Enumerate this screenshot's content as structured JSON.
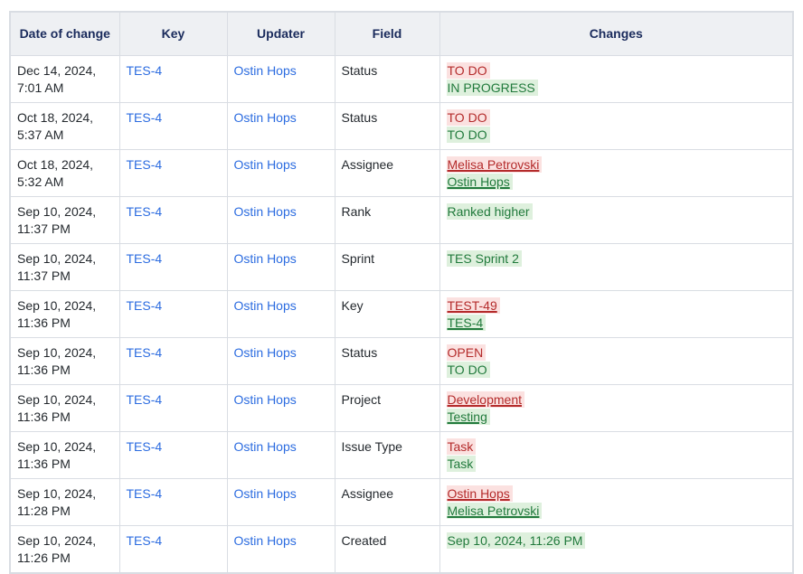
{
  "table": {
    "headers": {
      "date": "Date of change",
      "key": "Key",
      "updater": "Updater",
      "field": "Field",
      "changes": "Changes"
    },
    "colors": {
      "header_text": "#1a2b5c",
      "header_bg": "#eef0f3",
      "border": "#d9dde3",
      "link": "#2c6ce0",
      "removed_text": "#b42b2b",
      "removed_bg": "#fbe1e0",
      "added_text": "#217a3c",
      "added_bg": "#def0dd"
    },
    "rows": [
      {
        "date": "Dec 14, 2024, 7:01 AM",
        "key": "TES-4",
        "updater": "Ostin Hops",
        "field": "Status",
        "changes": [
          {
            "text": "TO DO",
            "kind": "removed",
            "underline": false
          },
          {
            "text": "IN PROGRESS",
            "kind": "added",
            "underline": false
          }
        ]
      },
      {
        "date": "Oct 18, 2024, 5:37 AM",
        "key": "TES-4",
        "updater": "Ostin Hops",
        "field": "Status",
        "changes": [
          {
            "text": "TO DO",
            "kind": "removed",
            "underline": false
          },
          {
            "text": "TO DO",
            "kind": "added",
            "underline": false
          }
        ]
      },
      {
        "date": "Oct 18, 2024, 5:32 AM",
        "key": "TES-4",
        "updater": "Ostin Hops",
        "field": "Assignee",
        "changes": [
          {
            "text": "Melisa Petrovski",
            "kind": "removed",
            "underline": true
          },
          {
            "text": "Ostin Hops",
            "kind": "added",
            "underline": true
          }
        ]
      },
      {
        "date": "Sep 10, 2024, 11:37 PM",
        "key": "TES-4",
        "updater": "Ostin Hops",
        "field": "Rank",
        "changes": [
          {
            "text": "Ranked higher",
            "kind": "added",
            "underline": false
          }
        ]
      },
      {
        "date": "Sep 10, 2024, 11:37 PM",
        "key": "TES-4",
        "updater": "Ostin Hops",
        "field": "Sprint",
        "changes": [
          {
            "text": "TES Sprint 2",
            "kind": "added",
            "underline": false
          }
        ]
      },
      {
        "date": "Sep 10, 2024, 11:36 PM",
        "key": "TES-4",
        "updater": "Ostin Hops",
        "field": "Key",
        "changes": [
          {
            "text": "TEST-49",
            "kind": "removed",
            "underline": true
          },
          {
            "text": "TES-4",
            "kind": "added",
            "underline": true
          }
        ]
      },
      {
        "date": "Sep 10, 2024, 11:36 PM",
        "key": "TES-4",
        "updater": "Ostin Hops",
        "field": "Status",
        "changes": [
          {
            "text": "OPEN",
            "kind": "removed",
            "underline": false
          },
          {
            "text": "TO DO",
            "kind": "added",
            "underline": false
          }
        ]
      },
      {
        "date": "Sep 10, 2024, 11:36 PM",
        "key": "TES-4",
        "updater": "Ostin Hops",
        "field": "Project",
        "changes": [
          {
            "text": "Development",
            "kind": "removed",
            "underline": true
          },
          {
            "text": "Testing",
            "kind": "added",
            "underline": true
          }
        ]
      },
      {
        "date": "Sep 10, 2024, 11:36 PM",
        "key": "TES-4",
        "updater": "Ostin Hops",
        "field": "Issue Type",
        "changes": [
          {
            "text": "Task",
            "kind": "removed",
            "underline": false
          },
          {
            "text": "Task",
            "kind": "added",
            "underline": false
          }
        ]
      },
      {
        "date": "Sep 10, 2024, 11:28 PM",
        "key": "TES-4",
        "updater": "Ostin Hops",
        "field": "Assignee",
        "changes": [
          {
            "text": "Ostin Hops",
            "kind": "removed",
            "underline": true
          },
          {
            "text": "Melisa Petrovski",
            "kind": "added",
            "underline": true
          }
        ]
      },
      {
        "date": "Sep 10, 2024, 11:26 PM",
        "key": "TES-4",
        "updater": "Ostin Hops",
        "field": "Created",
        "changes": [
          {
            "text": "Sep 10, 2024, 11:26 PM",
            "kind": "added",
            "underline": false
          }
        ]
      }
    ]
  }
}
